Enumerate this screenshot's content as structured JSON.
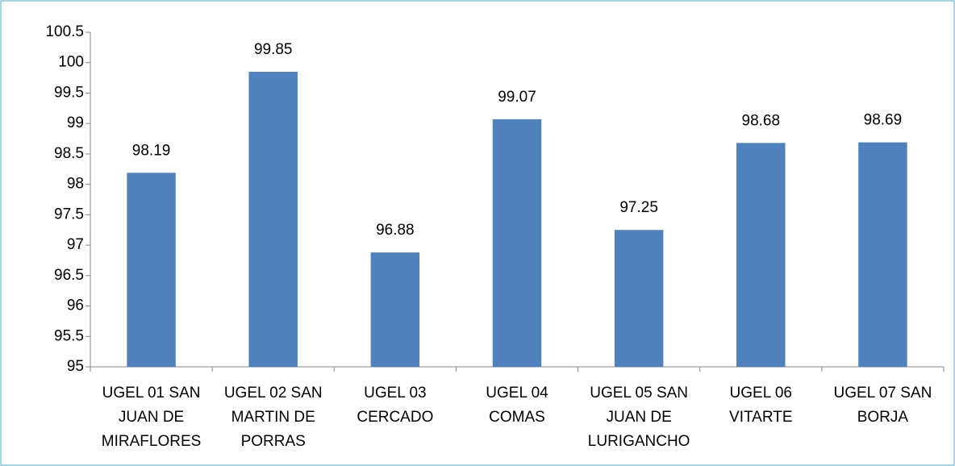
{
  "chart_data": {
    "type": "bar",
    "categories": [
      "UGEL 01 SAN JUAN DE MIRAFLORES",
      "UGEL 02 SAN MARTIN DE PORRAS",
      "UGEL 03 CERCADO",
      "UGEL 04 COMAS",
      "UGEL 05 SAN JUAN DE LURIGANCHO",
      "UGEL 06 VITARTE",
      "UGEL 07 SAN BORJA"
    ],
    "values": [
      98.19,
      99.85,
      96.88,
      99.07,
      97.25,
      98.68,
      98.69
    ],
    "color": "#4f81bd",
    "ylim": [
      95,
      100.5
    ],
    "yticks": [
      95,
      95.5,
      96,
      96.5,
      97,
      97.5,
      98,
      98.5,
      99,
      99.5,
      100,
      100.5
    ],
    "grid": false
  }
}
